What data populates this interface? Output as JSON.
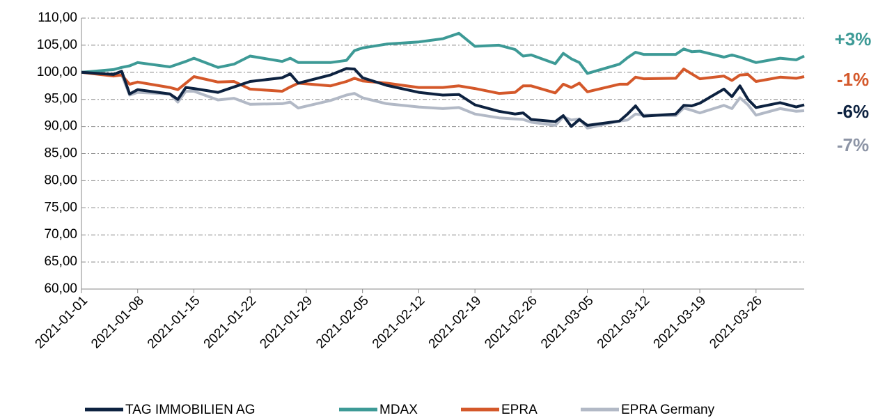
{
  "chart_data": {
    "type": "line",
    "x": [
      "2021-01-01",
      "2021-01-05",
      "2021-01-06",
      "2021-01-07",
      "2021-01-08",
      "2021-01-12",
      "2021-01-13",
      "2021-01-14",
      "2021-01-15",
      "2021-01-18",
      "2021-01-20",
      "2021-01-22",
      "2021-01-26",
      "2021-01-27",
      "2021-01-28",
      "2021-02-01",
      "2021-02-03",
      "2021-02-04",
      "2021-02-05",
      "2021-02-08",
      "2021-02-12",
      "2021-02-15",
      "2021-02-17",
      "2021-02-19",
      "2021-02-22",
      "2021-02-24",
      "2021-02-25",
      "2021-02-26",
      "2021-03-01",
      "2021-03-02",
      "2021-03-03",
      "2021-03-04",
      "2021-03-05",
      "2021-03-09",
      "2021-03-10",
      "2021-03-11",
      "2021-03-12",
      "2021-03-16",
      "2021-03-17",
      "2021-03-18",
      "2021-03-19",
      "2021-03-22",
      "2021-03-23",
      "2021-03-24",
      "2021-03-25",
      "2021-03-26",
      "2021-03-29",
      "2021-03-31",
      "2021-04-01"
    ],
    "series": [
      {
        "name": "TAG IMMOBILIEN AG",
        "color": "#0d2240",
        "values": [
          100,
          99.6,
          100.2,
          96.0,
          96.8,
          96.0,
          95.0,
          97.2,
          97.0,
          96.3,
          97.3,
          98.3,
          99.0,
          99.7,
          98.0,
          99.5,
          100.7,
          100.6,
          99.0,
          97.6,
          96.3,
          95.8,
          95.9,
          94.0,
          92.8,
          92.3,
          92.5,
          91.3,
          90.9,
          92.0,
          90.0,
          91.3,
          90.2,
          91.0,
          92.3,
          93.8,
          91.9,
          92.3,
          93.9,
          93.8,
          94.3,
          96.9,
          95.5,
          97.5,
          95.0,
          93.5,
          94.4,
          93.6,
          94.0
        ]
      },
      {
        "name": "MDAX",
        "color": "#3d9a96",
        "values": [
          100,
          100.5,
          100.9,
          101.2,
          101.8,
          101.0,
          101.5,
          102.0,
          102.6,
          100.9,
          101.5,
          103.0,
          102.0,
          102.6,
          101.8,
          101.8,
          102.2,
          104.0,
          104.5,
          105.2,
          105.6,
          106.2,
          107.2,
          104.8,
          105.0,
          104.2,
          103.0,
          103.2,
          101.6,
          103.5,
          102.5,
          101.8,
          99.8,
          101.5,
          102.7,
          103.7,
          103.3,
          103.3,
          104.3,
          103.8,
          103.9,
          102.8,
          103.2,
          102.8,
          102.3,
          101.8,
          102.6,
          102.3,
          103.0
        ]
      },
      {
        "name": "EPRA",
        "color": "#d4582a",
        "values": [
          100,
          99.3,
          99.5,
          97.8,
          98.2,
          97.2,
          96.8,
          98.0,
          99.2,
          98.2,
          98.3,
          96.9,
          96.5,
          97.3,
          98.0,
          97.5,
          98.3,
          98.9,
          98.4,
          98.0,
          97.2,
          97.2,
          97.5,
          97.0,
          96.1,
          96.3,
          97.5,
          97.5,
          96.2,
          97.8,
          97.2,
          98.0,
          96.4,
          97.8,
          97.8,
          99.1,
          98.8,
          98.9,
          100.6,
          99.7,
          98.8,
          99.3,
          98.5,
          99.5,
          99.6,
          98.3,
          99.1,
          98.9,
          99.2
        ]
      },
      {
        "name": "EPRA Germany",
        "color": "#b2b9c6",
        "values": [
          100,
          99.5,
          99.6,
          95.8,
          96.3,
          96.0,
          94.5,
          96.5,
          96.5,
          94.9,
          95.2,
          94.1,
          94.2,
          94.5,
          93.4,
          94.8,
          95.8,
          96.1,
          95.3,
          94.2,
          93.6,
          93.3,
          93.5,
          92.3,
          91.6,
          91.4,
          91.3,
          90.8,
          90.2,
          91.8,
          91.2,
          91.4,
          89.7,
          91.0,
          91.2,
          92.3,
          92.1,
          92.0,
          93.4,
          93.0,
          92.5,
          93.9,
          93.3,
          95.3,
          94.0,
          92.1,
          93.3,
          92.8,
          92.9
        ]
      }
    ],
    "xlim": [
      "2021-01-01",
      "2021-04-01"
    ],
    "xticks": [
      "2021-01-01",
      "2021-01-08",
      "2021-01-15",
      "2021-01-22",
      "2021-01-29",
      "2021-02-05",
      "2021-02-12",
      "2021-02-19",
      "2021-02-26",
      "2021-03-05",
      "2021-03-12",
      "2021-03-19",
      "2021-03-26"
    ],
    "ylim": [
      60,
      110
    ],
    "yticks": [
      {
        "value": 60,
        "label": "60,00"
      },
      {
        "value": 65,
        "label": "65,00"
      },
      {
        "value": 70,
        "label": "70,00"
      },
      {
        "value": 75,
        "label": "75,00"
      },
      {
        "value": 80,
        "label": "80,00"
      },
      {
        "value": 85,
        "label": "85,00"
      },
      {
        "value": 90,
        "label": "90,00"
      },
      {
        "value": 95,
        "label": "95,00"
      },
      {
        "value": 100,
        "label": "100,00"
      },
      {
        "value": 105,
        "label": "105,00"
      },
      {
        "value": 110,
        "label": "110,00"
      }
    ],
    "grid": true,
    "legend": "bottom",
    "annotations": [
      {
        "text": "+3%",
        "color": "#3d9a96"
      },
      {
        "text": "-1%",
        "color": "#d4582a"
      },
      {
        "text": "-6%",
        "color": "#0d2240"
      },
      {
        "text": "-7%",
        "color": "#8d95a6"
      }
    ]
  }
}
